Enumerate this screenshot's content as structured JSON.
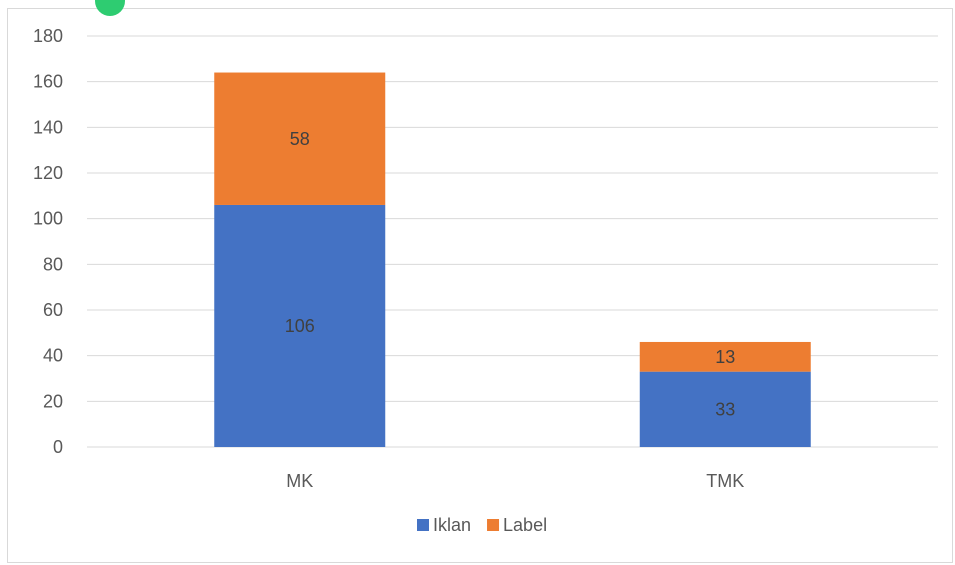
{
  "chart_data": {
    "type": "bar",
    "stacked": true,
    "categories": [
      "MK",
      "TMK"
    ],
    "series": [
      {
        "name": "Iklan",
        "values": [
          106,
          33
        ],
        "color": "#4472c4"
      },
      {
        "name": "Label",
        "values": [
          58,
          13
        ],
        "color": "#ed7d31"
      }
    ],
    "title": "",
    "xlabel": "",
    "ylabel": "",
    "ylim": [
      0,
      180
    ],
    "yticks": [
      0,
      20,
      40,
      60,
      80,
      100,
      120,
      140,
      160,
      180
    ],
    "grid": true,
    "legend": "bottom"
  }
}
